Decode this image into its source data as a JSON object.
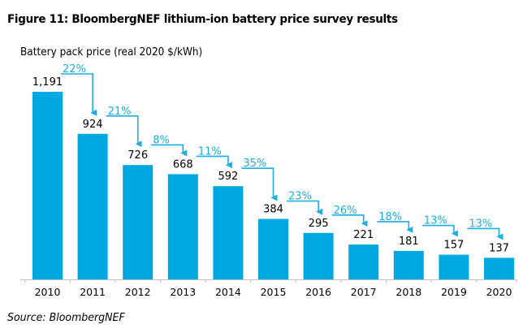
{
  "title": "Figure 11: BloombergNEF lithium-ion battery price survey results",
  "source": "Source: BloombergNEF",
  "colors": {
    "bar": "#00a8e1",
    "annotation": "#1aaee5",
    "axis": "#bfbfbf",
    "text": "#000000"
  },
  "chart_data": {
    "type": "bar",
    "title": "Figure 11: BloombergNEF lithium-ion battery price survey results",
    "ylabel": "Battery pack price (real 2020 $/kWh)",
    "xlabel": "",
    "categories": [
      "2010",
      "2011",
      "2012",
      "2013",
      "2014",
      "2015",
      "2016",
      "2017",
      "2018",
      "2019",
      "2020"
    ],
    "values": [
      1191,
      924,
      726,
      668,
      592,
      384,
      295,
      221,
      181,
      157,
      137
    ],
    "value_labels": [
      "1,191",
      "924",
      "726",
      "668",
      "592",
      "384",
      "295",
      "221",
      "181",
      "157",
      "137"
    ],
    "annotations": {
      "description": "Year-over-year percentage decline, drawn as arrows from previous bar to next bar",
      "labels": [
        "22%",
        "21%",
        "8%",
        "11%",
        "35%",
        "23%",
        "26%",
        "18%",
        "13%",
        "13%"
      ]
    },
    "ylim": [
      0,
      1191
    ],
    "grid": false,
    "legend": "none"
  }
}
